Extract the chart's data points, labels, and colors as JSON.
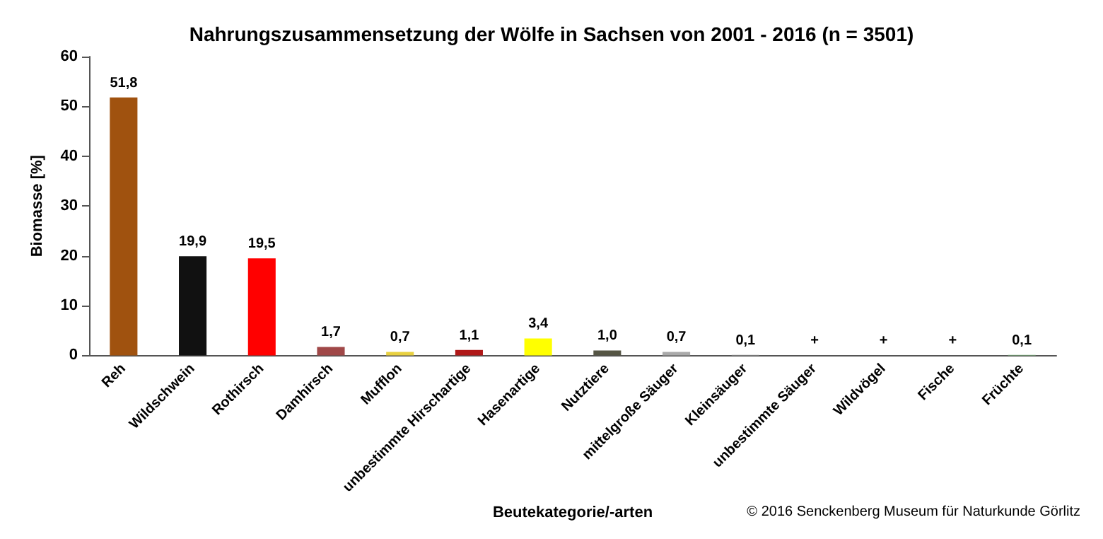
{
  "chart_data": {
    "type": "bar",
    "title": "Nahrungszusammensetzung der Wölfe in Sachsen von 2001 - 2016 (n = 3501)",
    "xlabel": "Beutekategorie/-arten",
    "ylabel": "Biomasse [%]",
    "categories": [
      "Reh",
      "Wildschwein",
      "Rothirsch",
      "Damhirsch",
      "Mufflon",
      "unbestimmte Hirschartige",
      "Hasenartige",
      "Nutztiere",
      "mittelgroße Säuger",
      "Kleinsäuger",
      "unbestimmte Säuger",
      "Wildvögel",
      "Fische",
      "Früchte"
    ],
    "values": [
      51.8,
      19.9,
      19.5,
      1.7,
      0.7,
      1.1,
      3.4,
      1.0,
      0.7,
      0.1,
      0,
      0,
      0,
      0.1
    ],
    "value_labels": [
      "51,8",
      "19,9",
      "19,5",
      "1,7",
      "0,7",
      "1,1",
      "3,4",
      "1,0",
      "0,7",
      "0,1",
      "+",
      "+",
      "+",
      "0,1"
    ],
    "colors": [
      "#a0520f",
      "#111111",
      "#ff0000",
      "#a04848",
      "#e8d040",
      "#b01818",
      "#ffff00",
      "#555544",
      "#aaaaaa",
      "#999999",
      "#999999",
      "#999999",
      "#999999",
      "#80c080"
    ],
    "ylim": [
      0,
      60
    ],
    "yticks": [
      0,
      10,
      20,
      30,
      40,
      50,
      60
    ],
    "grid": false,
    "annotations": [
      "© 2016 Senckenberg Museum für Naturkunde Görlitz"
    ]
  }
}
